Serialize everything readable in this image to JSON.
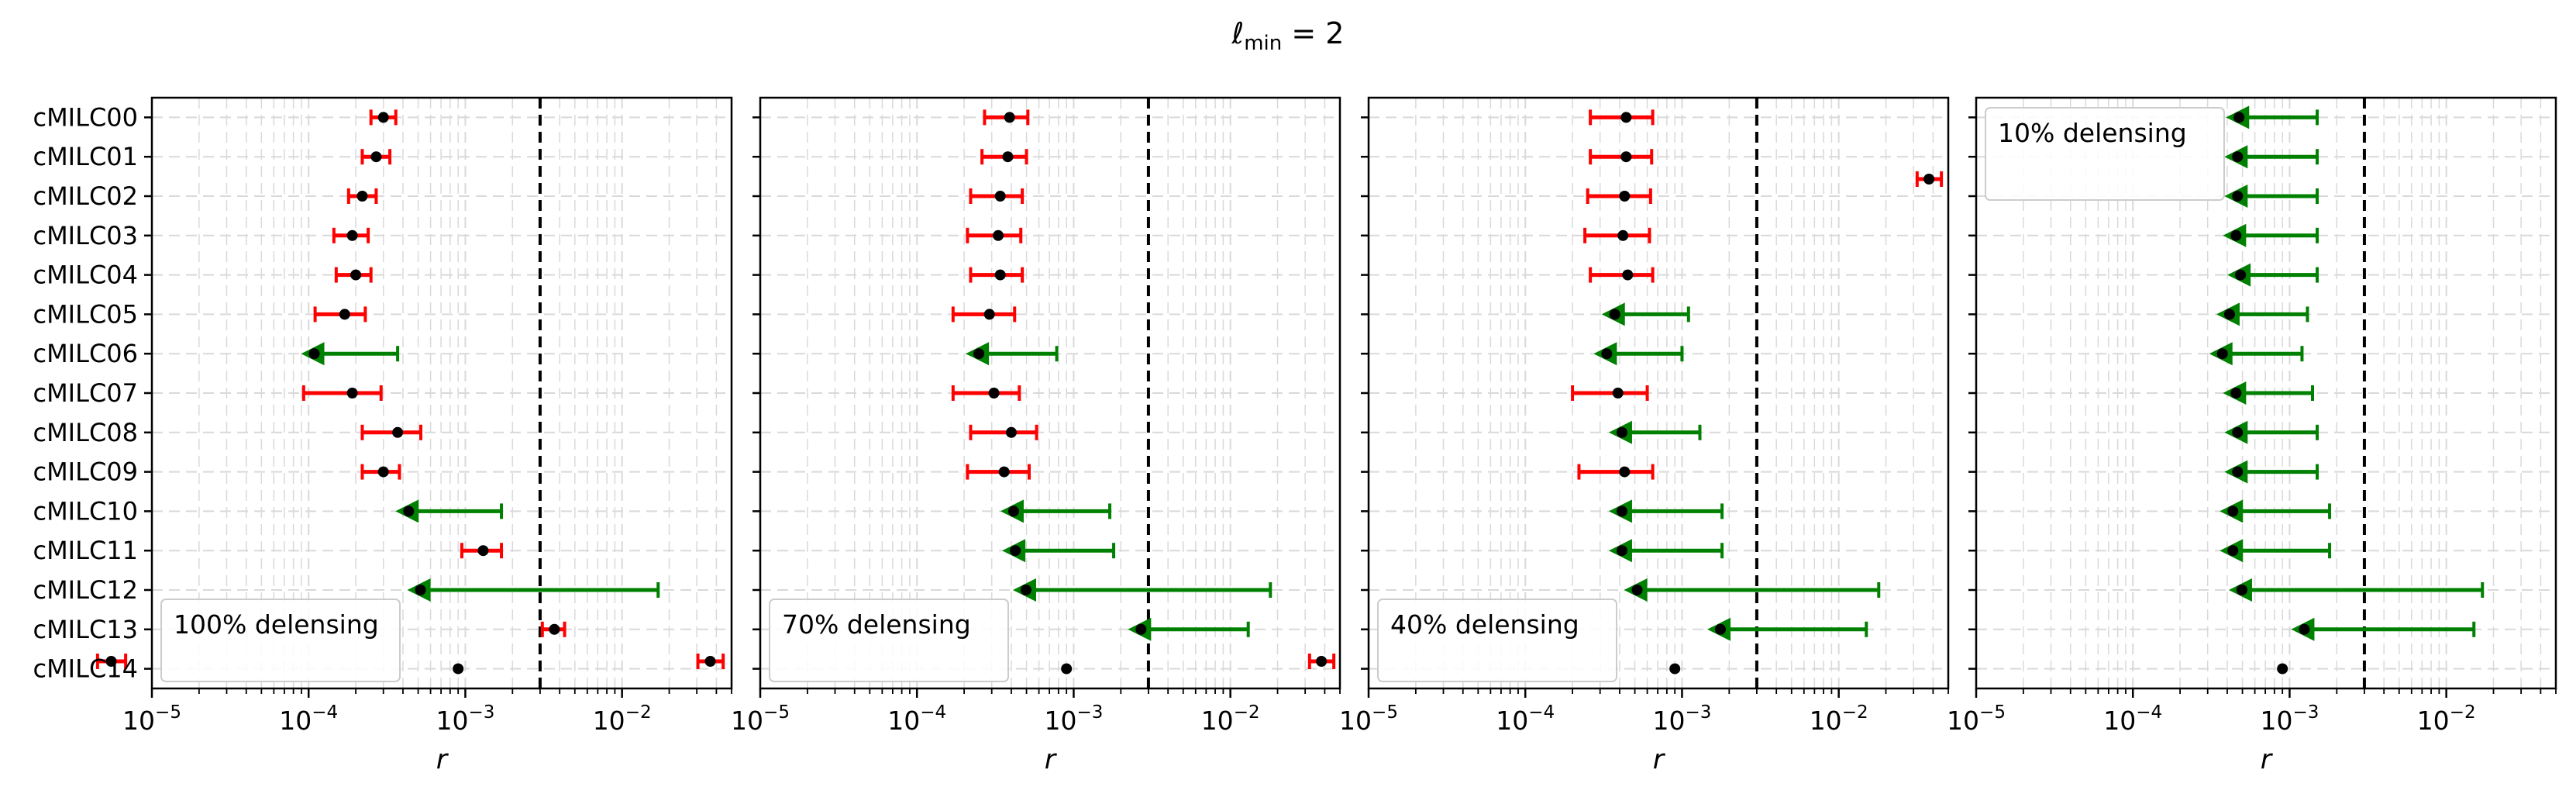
{
  "figure": {
    "suptitle_main": "ℓ",
    "suptitle_sub": "min",
    "suptitle_rest": " = 2"
  },
  "chart_data": [
    {
      "type": "errorbar",
      "xscale": "log",
      "xlabel": "r",
      "xlim": [
        1e-05,
        0.05
      ],
      "xticks": [
        {
          "base": "10",
          "exp": "−5"
        },
        {
          "base": "10",
          "exp": "−4"
        },
        {
          "base": "10",
          "exp": "−3"
        },
        {
          "base": "10",
          "exp": "−2"
        }
      ],
      "grid": true,
      "reference_line": 0.003,
      "categories": [
        "cMILC00",
        "cMILC01",
        "cMILC02",
        "cMILC03",
        "cMILC04",
        "cMILC05",
        "cMILC06",
        "cMILC07",
        "cMILC08",
        "cMILC09",
        "cMILC10",
        "cMILC11",
        "cMILC12",
        "cMILC13",
        "cMILC14"
      ],
      "series": [
        {
          "points": [
            {
              "x": 0.0003,
              "lo": 0.00025,
              "hi": 0.00036,
              "kind": "detection"
            },
            {
              "x": 0.00027,
              "lo": 0.00022,
              "hi": 0.00033,
              "kind": "detection"
            },
            {
              "x": 0.00022,
              "lo": 0.00018,
              "hi": 0.00027,
              "kind": "detection"
            },
            {
              "x": 0.00019,
              "lo": 0.000145,
              "hi": 0.00024,
              "kind": "detection"
            },
            {
              "x": 0.0002,
              "lo": 0.00015,
              "hi": 0.00025,
              "kind": "detection"
            },
            {
              "x": 0.00017,
              "lo": 0.00011,
              "hi": 0.00023,
              "kind": "detection"
            },
            {
              "x": 0.000105,
              "hi": 0.00037,
              "kind": "upper_limit"
            },
            {
              "x": 0.00019,
              "lo": 9.3e-05,
              "hi": 0.00029,
              "kind": "detection"
            },
            {
              "x": 0.00037,
              "lo": 0.00022,
              "hi": 0.00052,
              "kind": "detection"
            },
            {
              "x": 0.0003,
              "lo": 0.00022,
              "hi": 0.00038,
              "kind": "detection"
            },
            {
              "x": 0.00042,
              "hi": 0.0017,
              "kind": "upper_limit"
            },
            {
              "x": 0.0013,
              "lo": 0.00095,
              "hi": 0.0017,
              "kind": "detection"
            },
            {
              "x": 0.0005,
              "hi": 0.017,
              "kind": "upper_limit"
            },
            {
              "x": 0.0037,
              "lo": 0.0031,
              "hi": 0.0043,
              "kind": "detection"
            },
            {
              "x": 0.0009,
              "kind": "point"
            }
          ]
        }
      ],
      "legend": {
        "label": "100% delensing",
        "marker_x": 5.5e-06,
        "marker_lo": 4.5e-06,
        "marker_hi": 6.8e-06
      }
    },
    {
      "type": "errorbar",
      "xscale": "log",
      "xlabel": "r",
      "xlim": [
        1e-05,
        0.05
      ],
      "xticks": [
        {
          "base": "10",
          "exp": "−5"
        },
        {
          "base": "10",
          "exp": "−4"
        },
        {
          "base": "10",
          "exp": "−3"
        },
        {
          "base": "10",
          "exp": "−2"
        }
      ],
      "grid": true,
      "reference_line": 0.003,
      "categories": [
        "cMILC00",
        "cMILC01",
        "cMILC02",
        "cMILC03",
        "cMILC04",
        "cMILC05",
        "cMILC06",
        "cMILC07",
        "cMILC08",
        "cMILC09",
        "cMILC10",
        "cMILC11",
        "cMILC12",
        "cMILC13",
        "cMILC14"
      ],
      "series": [
        {
          "points": [
            {
              "x": 0.00039,
              "lo": 0.00027,
              "hi": 0.00051,
              "kind": "detection"
            },
            {
              "x": 0.00038,
              "lo": 0.00026,
              "hi": 0.0005,
              "kind": "detection"
            },
            {
              "x": 0.00034,
              "lo": 0.00022,
              "hi": 0.00047,
              "kind": "detection"
            },
            {
              "x": 0.00033,
              "lo": 0.00021,
              "hi": 0.00046,
              "kind": "detection"
            },
            {
              "x": 0.00034,
              "lo": 0.00022,
              "hi": 0.00047,
              "kind": "detection"
            },
            {
              "x": 0.00029,
              "lo": 0.00017,
              "hi": 0.00042,
              "kind": "detection"
            },
            {
              "x": 0.00024,
              "hi": 0.00078,
              "kind": "upper_limit"
            },
            {
              "x": 0.00031,
              "lo": 0.00017,
              "hi": 0.00045,
              "kind": "detection"
            },
            {
              "x": 0.0004,
              "lo": 0.00022,
              "hi": 0.00058,
              "kind": "detection"
            },
            {
              "x": 0.00036,
              "lo": 0.00021,
              "hi": 0.00052,
              "kind": "detection"
            },
            {
              "x": 0.0004,
              "hi": 0.0017,
              "kind": "upper_limit"
            },
            {
              "x": 0.00041,
              "hi": 0.0018,
              "kind": "upper_limit"
            },
            {
              "x": 0.00048,
              "hi": 0.018,
              "kind": "upper_limit"
            },
            {
              "x": 0.0026,
              "hi": 0.013,
              "kind": "upper_limit"
            },
            {
              "x": 0.0009,
              "kind": "point"
            }
          ]
        }
      ],
      "legend": {
        "label": "70% delensing",
        "marker_x": 4.8e-06,
        "marker_lo": 4e-06,
        "marker_hi": 5.8e-06
      }
    },
    {
      "type": "errorbar",
      "xscale": "log",
      "xlabel": "r",
      "xlim": [
        1e-05,
        0.05
      ],
      "xticks": [
        {
          "base": "10",
          "exp": "−5"
        },
        {
          "base": "10",
          "exp": "−4"
        },
        {
          "base": "10",
          "exp": "−3"
        },
        {
          "base": "10",
          "exp": "−2"
        }
      ],
      "grid": true,
      "reference_line": 0.003,
      "categories": [
        "cMILC00",
        "cMILC01",
        "cMILC02",
        "cMILC03",
        "cMILC04",
        "cMILC05",
        "cMILC06",
        "cMILC07",
        "cMILC08",
        "cMILC09",
        "cMILC10",
        "cMILC11",
        "cMILC12",
        "cMILC13",
        "cMILC14"
      ],
      "series": [
        {
          "points": [
            {
              "x": 0.00044,
              "lo": 0.00026,
              "hi": 0.00065,
              "kind": "detection"
            },
            {
              "x": 0.00044,
              "lo": 0.00026,
              "hi": 0.00064,
              "kind": "detection"
            },
            {
              "x": 0.00043,
              "lo": 0.00025,
              "hi": 0.00063,
              "kind": "detection"
            },
            {
              "x": 0.00042,
              "lo": 0.00024,
              "hi": 0.00062,
              "kind": "detection"
            },
            {
              "x": 0.00045,
              "lo": 0.00026,
              "hi": 0.00065,
              "kind": "detection"
            },
            {
              "x": 0.00036,
              "hi": 0.0011,
              "kind": "upper_limit"
            },
            {
              "x": 0.00032,
              "hi": 0.001,
              "kind": "upper_limit"
            },
            {
              "x": 0.00039,
              "lo": 0.0002,
              "hi": 0.0006,
              "kind": "detection"
            },
            {
              "x": 0.0004,
              "hi": 0.0013,
              "kind": "upper_limit"
            },
            {
              "x": 0.00043,
              "lo": 0.00022,
              "hi": 0.00065,
              "kind": "detection"
            },
            {
              "x": 0.0004,
              "hi": 0.0018,
              "kind": "upper_limit"
            },
            {
              "x": 0.0004,
              "hi": 0.0018,
              "kind": "upper_limit"
            },
            {
              "x": 0.0005,
              "hi": 0.018,
              "kind": "upper_limit"
            },
            {
              "x": 0.0017,
              "hi": 0.015,
              "kind": "upper_limit"
            },
            {
              "x": 0.0009,
              "kind": "point"
            }
          ]
        }
      ],
      "legend": {
        "label": "40% delensing",
        "marker_x": 5e-06,
        "marker_lo": 4.2e-06,
        "marker_hi": 6e-06
      }
    },
    {
      "type": "errorbar",
      "xscale": "log",
      "xlabel": "r",
      "xlim": [
        1e-05,
        0.05
      ],
      "xticks": [
        {
          "base": "10",
          "exp": "−5"
        },
        {
          "base": "10",
          "exp": "−4"
        },
        {
          "base": "10",
          "exp": "−3"
        },
        {
          "base": "10",
          "exp": "−2"
        }
      ],
      "grid": true,
      "reference_line": 0.003,
      "categories": [
        "cMILC00",
        "cMILC01",
        "cMILC02",
        "cMILC03",
        "cMILC04",
        "cMILC05",
        "cMILC06",
        "cMILC07",
        "cMILC08",
        "cMILC09",
        "cMILC10",
        "cMILC11",
        "cMILC12",
        "cMILC13",
        "cMILC14"
      ],
      "series": [
        {
          "points": [
            {
              "x": 0.00046,
              "hi": 0.0015,
              "kind": "upper_limit"
            },
            {
              "x": 0.00045,
              "hi": 0.0015,
              "kind": "upper_limit"
            },
            {
              "x": 0.00045,
              "hi": 0.0015,
              "kind": "upper_limit"
            },
            {
              "x": 0.00044,
              "hi": 0.0015,
              "kind": "upper_limit"
            },
            {
              "x": 0.00047,
              "hi": 0.0015,
              "kind": "upper_limit"
            },
            {
              "x": 0.0004,
              "hi": 0.0013,
              "kind": "upper_limit"
            },
            {
              "x": 0.00036,
              "hi": 0.0012,
              "kind": "upper_limit"
            },
            {
              "x": 0.00044,
              "hi": 0.0014,
              "kind": "upper_limit"
            },
            {
              "x": 0.00045,
              "hi": 0.0015,
              "kind": "upper_limit"
            },
            {
              "x": 0.00045,
              "hi": 0.0015,
              "kind": "upper_limit"
            },
            {
              "x": 0.00042,
              "hi": 0.0018,
              "kind": "upper_limit"
            },
            {
              "x": 0.00042,
              "hi": 0.0018,
              "kind": "upper_limit"
            },
            {
              "x": 0.00048,
              "hi": 0.017,
              "kind": "upper_limit"
            },
            {
              "x": 0.0012,
              "hi": 0.015,
              "kind": "upper_limit"
            },
            {
              "x": 0.0009,
              "kind": "point"
            }
          ]
        }
      ],
      "legend": {
        "label": "10% delensing",
        "marker_x": 5e-06,
        "marker_lo": 4.2e-06,
        "marker_hi": 6e-06
      }
    }
  ],
  "colors": {
    "detection": "#ff0000",
    "upper_limit": "#008000",
    "point": "#000000",
    "reference_line": "#000000",
    "grid": "#d9d9d9"
  }
}
